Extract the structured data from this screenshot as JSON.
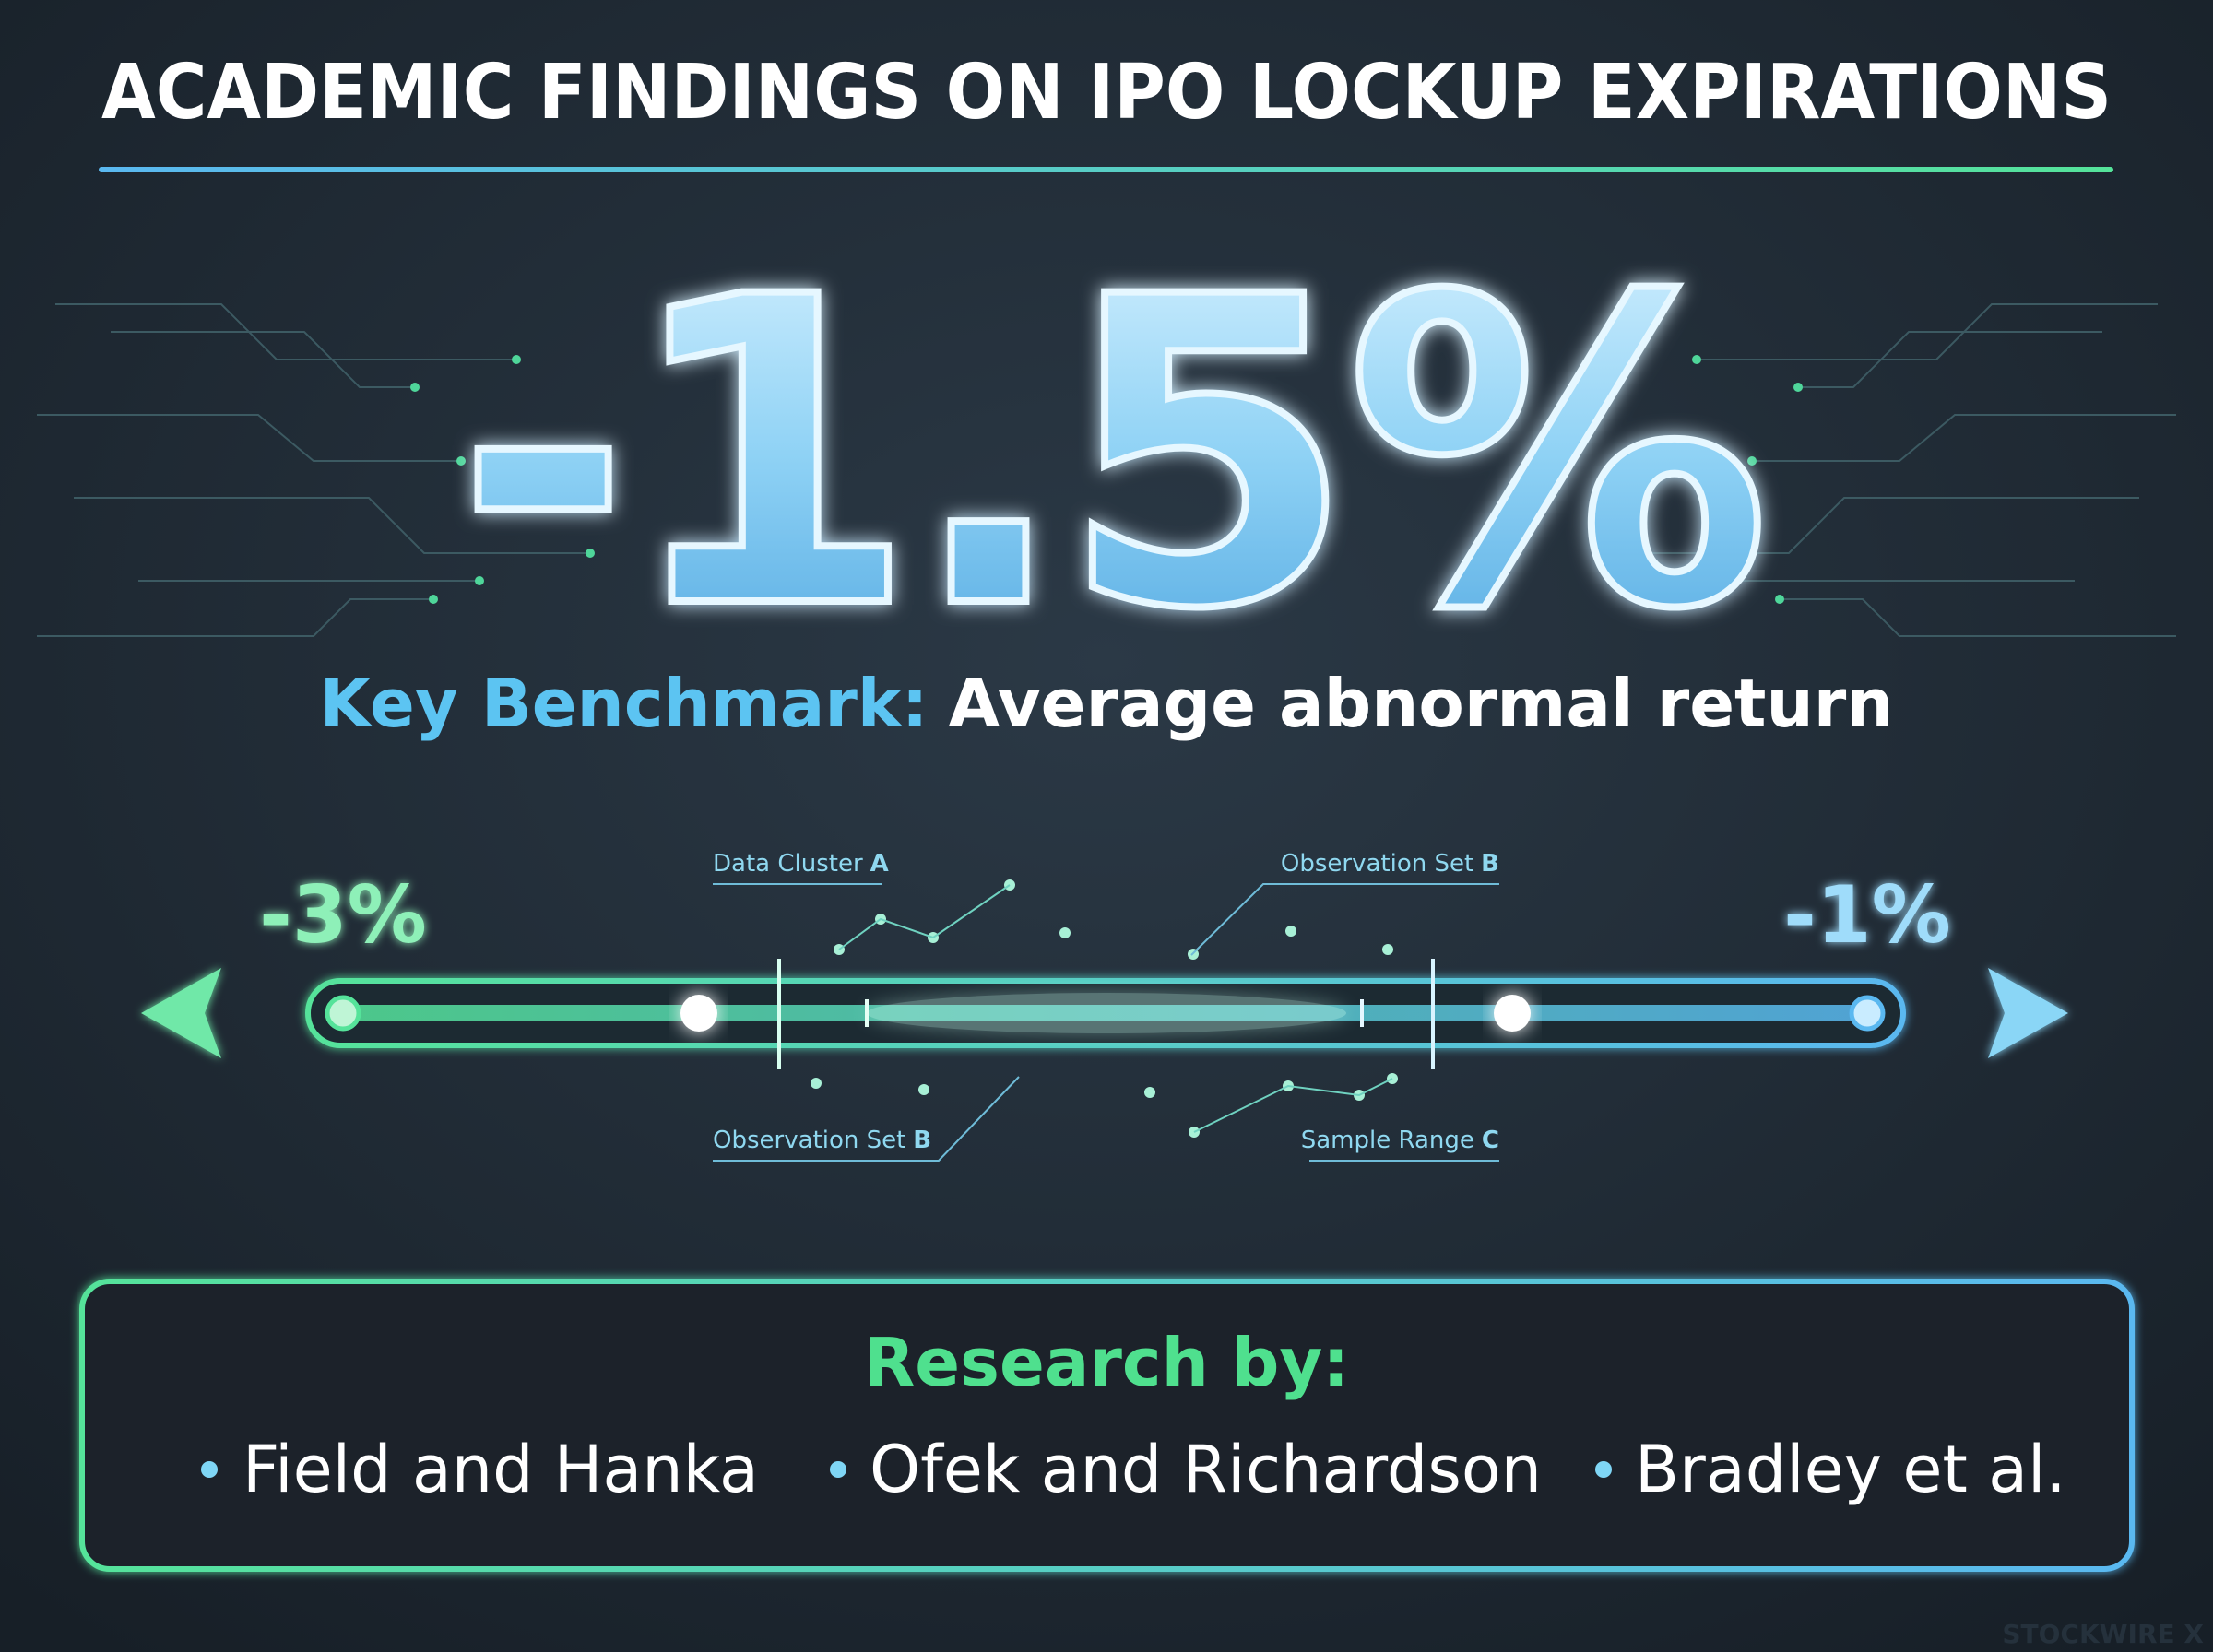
{
  "header": {
    "title": "ACADEMIC FINDINGS ON IPO LOCKUP EXPIRATIONS"
  },
  "headline": {
    "value": "-1.5%",
    "label": "Key Benchmark:",
    "description": "Average abnormal return"
  },
  "range": {
    "low": "-3%",
    "high": "-1%",
    "annotations": [
      {
        "text": "Data Cluster",
        "tag": "A"
      },
      {
        "text": "Observation Set",
        "tag": "B"
      },
      {
        "text": "Observation Set",
        "tag": "B"
      },
      {
        "text": "Sample Range",
        "tag": "C"
      }
    ]
  },
  "research": {
    "heading": "Research by:",
    "authors": [
      "Field and Hanka",
      "Ofek and Richardson",
      "Bradley et al."
    ]
  },
  "footer": {
    "watermark": "STOCKWIRE X"
  }
}
